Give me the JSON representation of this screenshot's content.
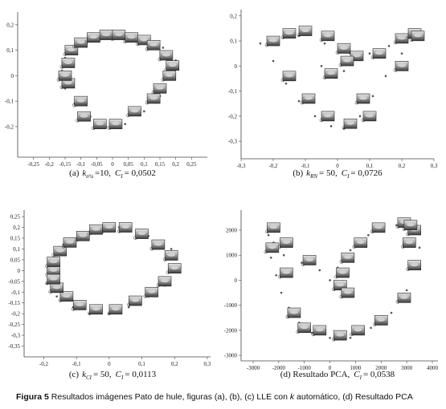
{
  "chart_data": [
    {
      "type": "scatter",
      "caption": {
        "prefix": "(a)",
        "k": "k",
        "k_sub": "σ¼",
        "k_rest": "=10,",
        "c": "C",
        "c_sub": "I",
        "c_rest": "= 0,0502"
      },
      "xlim": [
        -0.3,
        0.3
      ],
      "ylim": [
        -0.32,
        0.25
      ],
      "xticks": [
        {
          "value": -0.25,
          "label": "-0,25"
        },
        {
          "value": -0.2,
          "label": "-0,2"
        },
        {
          "value": -0.15,
          "label": "-0,15"
        },
        {
          "value": -0.1,
          "label": "-0,1"
        },
        {
          "value": -0.05,
          "label": "-0,05"
        },
        0,
        {
          "value": 0.05,
          "label": "0,05"
        },
        {
          "value": 0.1,
          "label": "0,1"
        },
        {
          "value": 0.15,
          "label": "0,15"
        },
        {
          "value": 0.2,
          "label": "0,2"
        },
        {
          "value": 0.25,
          "label": "0,25"
        }
      ],
      "yticks": [
        {
          "value": 0.2,
          "label": "0,2"
        },
        {
          "value": 0.1,
          "label": "0,1"
        },
        0,
        {
          "value": -0.1,
          "label": "-0,1"
        },
        {
          "value": -0.2,
          "label": "-0,2"
        }
      ],
      "points": {
        "x": [
          -0.16,
          -0.15,
          -0.12,
          -0.07,
          -0.02,
          0.04,
          0.1,
          0.15,
          0.19,
          0.2,
          0.16,
          0.1,
          0.03,
          -0.05,
          -0.11,
          -0.15
        ],
        "y": [
          0.02,
          -0.05,
          -0.11,
          -0.16,
          -0.2,
          -0.19,
          -0.14,
          -0.08,
          -0.01,
          0.06,
          0.11,
          0.15,
          0.16,
          0.15,
          0.12,
          0.07
        ]
      },
      "images": {
        "x": [
          -0.14,
          -0.13,
          -0.1,
          -0.06,
          -0.02,
          0.02,
          0.06,
          0.1,
          0.13,
          0.17,
          0.19,
          0.18,
          0.15,
          0.13,
          0.07,
          0.01,
          -0.04,
          -0.09,
          -0.1,
          -0.14,
          -0.15
        ],
        "y": [
          0.05,
          0.1,
          0.13,
          0.15,
          0.16,
          0.16,
          0.15,
          0.14,
          0.12,
          0.08,
          0.04,
          0.0,
          -0.05,
          -0.09,
          -0.14,
          -0.19,
          -0.19,
          -0.16,
          -0.1,
          -0.03,
          0.0
        ]
      }
    },
    {
      "type": "scatter",
      "caption": {
        "prefix": "(b)",
        "k": "k",
        "k_sub": "RN",
        "k_rest": "= 50,",
        "c": "C",
        "c_sub": "I",
        "c_rest": "= 0,0726"
      },
      "xlim": [
        -0.3,
        0.3
      ],
      "ylim": [
        -0.37,
        0.225
      ],
      "xticks": [
        {
          "value": -0.3,
          "label": "-0,3"
        },
        {
          "value": -0.2,
          "label": "-0,2"
        },
        {
          "value": -0.1,
          "label": "-0,1"
        },
        0,
        {
          "value": 0.1,
          "label": "0,1"
        },
        {
          "value": 0.2,
          "label": "0,2"
        },
        {
          "value": 0.3,
          "label": "0,3"
        }
      ],
      "yticks": [
        {
          "value": 0.2,
          "label": "0,2"
        },
        {
          "value": 0.1,
          "label": "0,1"
        },
        0,
        {
          "value": -0.1,
          "label": "-0,1"
        },
        {
          "value": -0.2,
          "label": "-0,2"
        },
        {
          "value": -0.3,
          "label": "-0,3"
        }
      ],
      "points": {
        "x": [
          -0.24,
          -0.2,
          -0.16,
          -0.12,
          -0.07,
          -0.02,
          0.02,
          0.07,
          0.11,
          0.15,
          0.2,
          0.23,
          0.16,
          0.1,
          0.04,
          -0.04,
          -0.12,
          0.02,
          -0.05
        ],
        "y": [
          0.09,
          0.02,
          -0.07,
          -0.14,
          -0.2,
          -0.24,
          -0.25,
          -0.2,
          -0.12,
          -0.04,
          0.05,
          0.12,
          0.08,
          0.05,
          0.05,
          0.09,
          0.12,
          -0.02,
          0.0
        ]
      },
      "images": {
        "x": [
          -0.2,
          -0.15,
          -0.1,
          -0.03,
          0.02,
          0.06,
          0.13,
          0.2,
          0.24,
          0.25,
          0.2,
          0.03,
          -0.02,
          -0.15,
          -0.09,
          0.08,
          0.1,
          0.04,
          -0.03
        ],
        "y": [
          0.1,
          0.13,
          0.14,
          0.12,
          0.07,
          0.04,
          0.05,
          0.11,
          0.13,
          0.12,
          0.0,
          0.02,
          -0.03,
          -0.04,
          -0.13,
          -0.13,
          -0.2,
          -0.23,
          -0.2
        ]
      }
    },
    {
      "type": "scatter",
      "caption": {
        "prefix": "(c)",
        "k": "k",
        "k_sub": "CI",
        "k_rest": "= 50,",
        "c": "C",
        "c_sub": "I",
        "c_rest": "= 0,0113"
      },
      "xlim": [
        -0.26,
        0.31
      ],
      "ylim": [
        -0.4,
        0.28
      ],
      "xticks": [
        {
          "value": -0.2,
          "label": "-0,2"
        },
        {
          "value": -0.1,
          "label": "-0,1"
        },
        0,
        {
          "value": 0.1,
          "label": "0,1"
        },
        {
          "value": 0.2,
          "label": "0,2"
        },
        {
          "value": 0.3,
          "label": "0,3"
        }
      ],
      "yticks": [
        {
          "value": 0.25,
          "label": "0,25"
        },
        {
          "value": 0.2,
          "label": "0,2"
        },
        {
          "value": 0.15,
          "label": "0,15"
        },
        {
          "value": 0.1,
          "label": "0,1"
        },
        {
          "value": 0.05,
          "label": "0,05"
        },
        0,
        {
          "value": -0.05,
          "label": "-0,05"
        },
        {
          "value": -0.1,
          "label": "-0,1"
        },
        {
          "value": -0.15,
          "label": "-0,15"
        },
        {
          "value": -0.2,
          "label": "-0,2"
        },
        {
          "value": -0.25,
          "label": "-0,25"
        },
        {
          "value": -0.3,
          "label": "-0,3"
        },
        {
          "value": -0.35,
          "label": "-0,35"
        }
      ],
      "points": {
        "x": [
          -0.19,
          -0.16,
          -0.11,
          -0.06,
          0.0,
          0.06,
          0.12,
          0.17,
          0.21,
          0.19,
          0.12,
          0.03,
          -0.06,
          -0.14,
          -0.18
        ],
        "y": [
          -0.06,
          -0.12,
          -0.17,
          -0.2,
          -0.2,
          -0.17,
          -0.12,
          -0.07,
          0.02,
          0.1,
          0.16,
          0.2,
          0.18,
          0.12,
          0.04
        ]
      },
      "images": {
        "x": [
          -0.17,
          -0.17,
          -0.15,
          -0.12,
          -0.08,
          -0.04,
          0.0,
          0.05,
          0.1,
          0.15,
          0.19,
          0.2,
          0.17,
          0.13,
          0.08,
          0.02,
          -0.04,
          -0.09,
          -0.13,
          -0.16,
          -0.17
        ],
        "y": [
          0.0,
          0.04,
          0.09,
          0.13,
          0.16,
          0.19,
          0.2,
          0.2,
          0.17,
          0.12,
          0.07,
          0.01,
          -0.05,
          -0.1,
          -0.14,
          -0.18,
          -0.18,
          -0.16,
          -0.12,
          -0.08,
          -0.04
        ]
      }
    },
    {
      "type": "scatter",
      "caption": {
        "prefix": "(d) Resultado PCA,",
        "c": "C",
        "c_sub": "I",
        "c_rest": "= 0,0538"
      },
      "xlim": [
        -3470,
        4220
      ],
      "ylim": [
        -3220,
        2800
      ],
      "xticks": [
        -3000,
        -2000,
        -1000,
        0,
        1000,
        2000,
        3000,
        4000
      ],
      "yticks": [
        2000,
        1000,
        0,
        -1000,
        -2000,
        -3000
      ],
      "points": {
        "x": [
          -2400,
          -2300,
          -2100,
          -1900,
          -1600,
          -1200,
          -700,
          0,
          800,
          1600,
          2400,
          3000,
          3400,
          3500,
          3300,
          2600,
          1500,
          800,
          300,
          0,
          -400,
          -1100,
          -1800,
          -2200
        ],
        "y": [
          1800,
          900,
          200,
          -500,
          -1100,
          -1700,
          -2100,
          -2300,
          -2300,
          -1900,
          -1300,
          -400,
          500,
          1300,
          2100,
          2200,
          1800,
          1200,
          500,
          0,
          400,
          700,
          1000,
          1500
        ]
      },
      "images": {
        "x": [
          -2200,
          -2250,
          -1700,
          -1700,
          -1400,
          -1000,
          -400,
          400,
          1100,
          2000,
          2900,
          3300,
          3100,
          3300,
          2900,
          3150,
          1900,
          1200,
          700,
          500,
          400,
          700,
          -800
        ],
        "y": [
          2100,
          1300,
          1500,
          300,
          -1300,
          -1900,
          -2000,
          -2200,
          -2000,
          -1600,
          -700,
          600,
          1500,
          2000,
          2300,
          2200,
          2100,
          1500,
          900,
          300,
          -200,
          -500,
          800
        ]
      }
    }
  ],
  "figure_caption": {
    "label": "Figura 5",
    "text": "Resultados imágenes Pato de hule, figuras (a), (b), (c) LLE con",
    "k": "k",
    "text2": "automático, (d) Resultado PCA"
  }
}
